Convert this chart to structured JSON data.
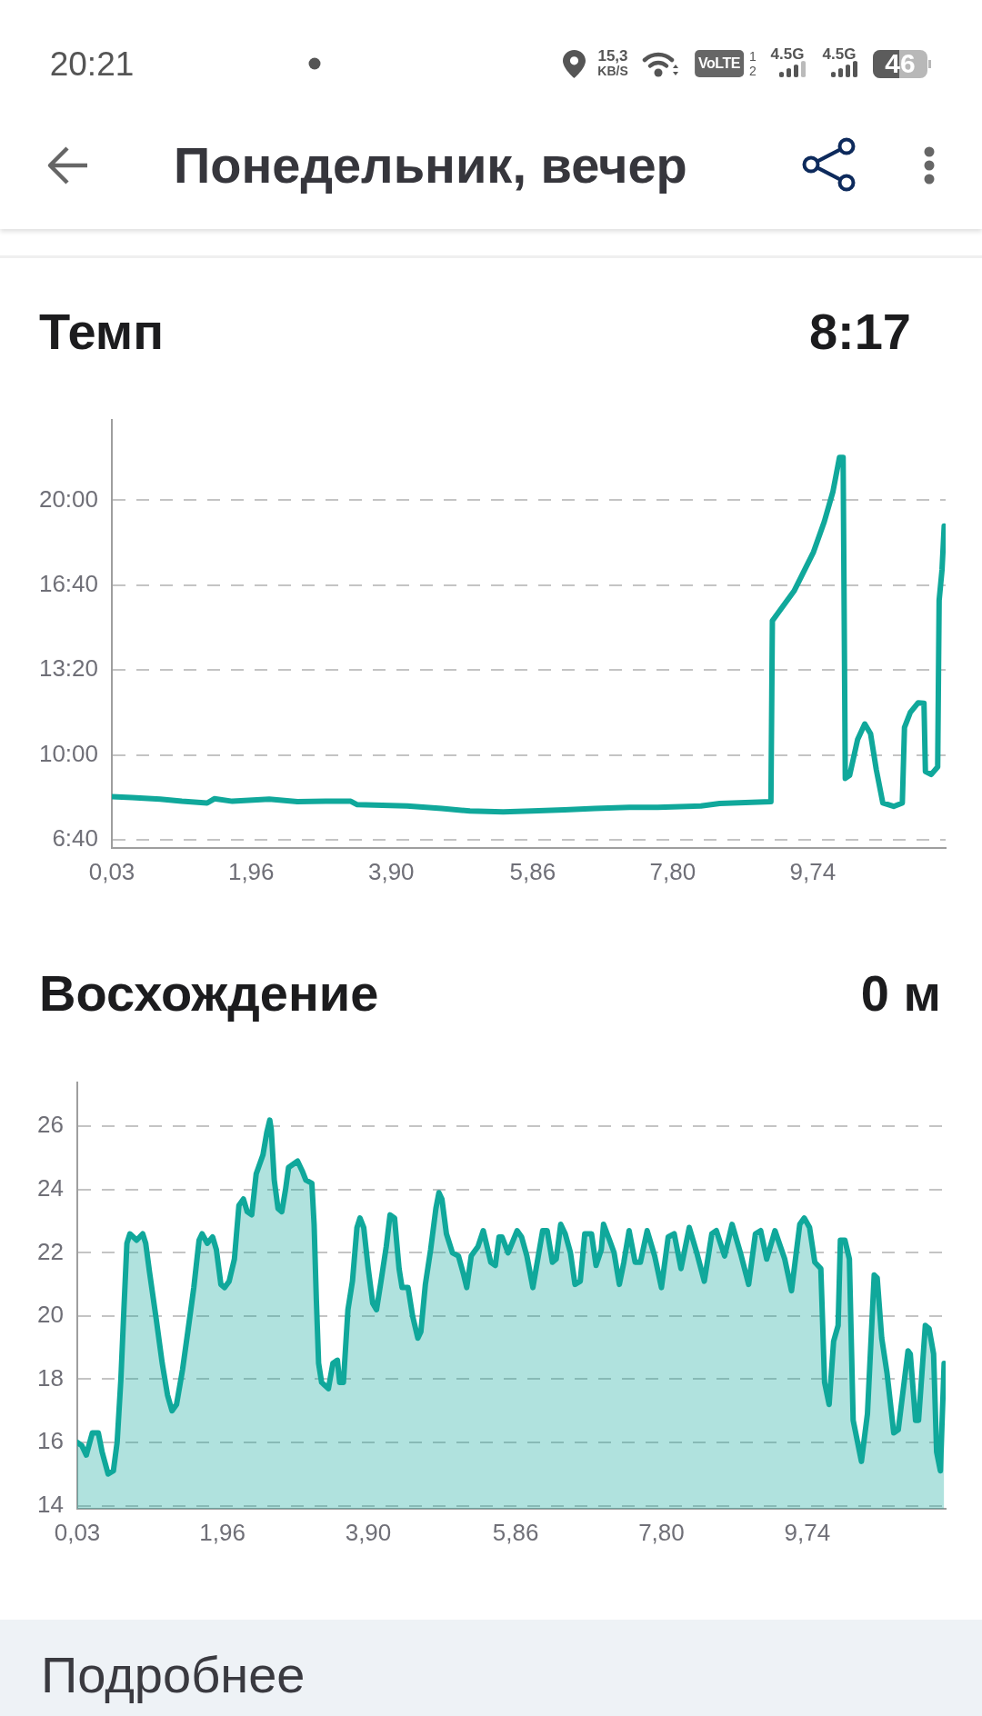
{
  "chart_data": [
    {
      "type": "other",
      "title": "Понедельник, вечер",
      "annotations": [
        "20:21",
        "15,3",
        "KB/S",
        "VoLTE",
        "1",
        "2",
        "4.5G",
        "4.5G",
        "46"
      ]
    },
    {
      "type": "line",
      "title": "Темп",
      "annotations": [
        "8:17"
      ],
      "x": [
        0.03,
        0.31,
        0.7,
        1.0,
        1.35,
        1.45,
        1.7,
        2.21,
        2.6,
        2.99,
        3.34,
        3.43,
        4.12,
        4.6,
        4.99,
        5.45,
        5.85,
        6.3,
        6.72,
        7.2,
        7.59,
        8.19,
        8.45,
        9.16,
        9.18,
        9.48,
        9.75,
        9.9,
        10.02,
        10.11,
        10.16,
        10.19,
        10.25,
        10.36,
        10.46,
        10.54,
        10.62,
        10.71,
        10.86,
        10.98,
        11.01,
        11.09,
        11.2,
        11.28,
        11.3,
        11.38,
        11.47,
        11.49,
        11.53,
        11.56
      ],
      "values": [
        502,
        500,
        496,
        491,
        487,
        497,
        491,
        496,
        490,
        491,
        491,
        483,
        480,
        474,
        468,
        466,
        468,
        471,
        474,
        477,
        477,
        480,
        486,
        490,
        916,
        986,
        1078,
        1150,
        1221,
        1301,
        1301,
        545,
        552,
        636,
        673,
        650,
        565,
        487,
        479,
        487,
        665,
        700,
        723,
        722,
        561,
        554,
        572,
        964,
        1036,
        1139
      ],
      "color": "#10a89b",
      "xlim": [
        0.03,
        11.58
      ],
      "xticks": [
        {
          "value": 0.03,
          "label": "0,03"
        },
        {
          "value": 1.96,
          "label": "1,96"
        },
        {
          "value": 3.9,
          "label": "3,90"
        },
        {
          "value": 5.86,
          "label": "5,86"
        },
        {
          "value": 7.8,
          "label": "7,80"
        },
        {
          "value": 9.74,
          "label": "9,74"
        }
      ],
      "ylim": [
        381,
        1390
      ],
      "yticks": [
        {
          "value": 400,
          "label": "6:40"
        },
        {
          "value": 600,
          "label": "10:00"
        },
        {
          "value": 800,
          "label": "13:20"
        },
        {
          "value": 1000,
          "label": "16:40"
        },
        {
          "value": 1200,
          "label": "20:00"
        }
      ],
      "grid": "y"
    },
    {
      "type": "area",
      "title": "Восхождение",
      "annotations": [
        "0 м"
      ],
      "x": [
        0.03,
        0.09,
        0.15,
        0.23,
        0.31,
        0.36,
        0.44,
        0.51,
        0.56,
        0.61,
        0.65,
        0.69,
        0.73,
        0.82,
        0.9,
        0.94,
        0.99,
        1.08,
        1.16,
        1.23,
        1.29,
        1.35,
        1.43,
        1.5,
        1.58,
        1.65,
        1.69,
        1.76,
        1.83,
        1.88,
        1.94,
        1.99,
        2.05,
        2.12,
        2.18,
        2.24,
        2.29,
        2.35,
        2.41,
        2.5,
        2.55,
        2.59,
        2.61,
        2.65,
        2.7,
        2.75,
        2.8,
        2.84,
        2.9,
        2.96,
        3.02,
        3.07,
        3.15,
        3.18,
        3.21,
        3.24,
        3.28,
        3.37,
        3.43,
        3.49,
        3.52,
        3.57,
        3.63,
        3.69,
        3.75,
        3.79,
        3.84,
        3.9,
        3.96,
        4.01,
        4.07,
        4.14,
        4.19,
        4.25,
        4.31,
        4.35,
        4.43,
        4.49,
        4.56,
        4.6,
        4.66,
        4.73,
        4.8,
        4.84,
        4.88,
        4.94,
        5.02,
        5.1,
        5.17,
        5.21,
        5.27,
        5.36,
        5.43,
        5.53,
        5.59,
        5.64,
        5.68,
        5.76,
        5.88,
        5.94,
        6.01,
        6.09,
        6.22,
        6.28,
        6.35,
        6.4,
        6.46,
        6.52,
        6.59,
        6.65,
        6.72,
        6.78,
        6.87,
        6.93,
        7.0,
        7.03,
        7.11,
        7.17,
        7.24,
        7.3,
        7.37,
        7.45,
        7.52,
        7.61,
        7.71,
        7.8,
        7.89,
        7.97,
        8.06,
        8.17,
        8.27,
        8.37,
        8.47,
        8.53,
        8.64,
        8.74,
        8.85,
        8.96,
        9.05,
        9.12,
        9.2,
        9.31,
        9.44,
        9.53,
        9.64,
        9.7,
        9.77,
        9.84,
        9.92,
        9.97,
        10.03,
        10.09,
        10.15,
        10.18,
        10.24,
        10.3,
        10.35,
        10.46,
        10.54,
        10.63,
        10.67,
        10.73,
        10.8,
        10.89,
        10.95,
        11.08,
        11.11,
        11.18,
        11.22,
        11.31,
        11.36,
        11.42,
        11.46,
        11.51,
        11.56
      ],
      "values": [
        16.0,
        15.9,
        15.6,
        16.3,
        16.3,
        15.7,
        15.0,
        15.1,
        16.0,
        18.0,
        20.2,
        22.3,
        22.6,
        22.4,
        22.6,
        22.3,
        21.4,
        19.9,
        18.5,
        17.5,
        17.0,
        17.2,
        18.3,
        19.5,
        20.9,
        22.4,
        22.6,
        22.3,
        22.5,
        22.1,
        21.0,
        20.9,
        21.1,
        21.8,
        23.5,
        23.7,
        23.3,
        23.2,
        24.5,
        25.1,
        25.8,
        26.2,
        25.9,
        24.3,
        23.4,
        23.3,
        24.0,
        24.7,
        24.8,
        24.9,
        24.6,
        24.3,
        24.2,
        22.9,
        20.5,
        18.5,
        17.9,
        17.7,
        18.5,
        18.6,
        17.9,
        17.9,
        20.2,
        21.1,
        22.8,
        23.1,
        22.8,
        21.5,
        20.4,
        20.2,
        21.1,
        22.2,
        23.2,
        23.1,
        21.5,
        20.9,
        20.9,
        20.0,
        19.3,
        19.5,
        21.0,
        22.1,
        23.4,
        23.9,
        23.7,
        22.6,
        22.0,
        21.9,
        21.3,
        20.9,
        21.9,
        22.2,
        22.7,
        21.7,
        21.6,
        22.5,
        22.5,
        22.0,
        22.7,
        22.5,
        21.9,
        20.9,
        22.7,
        22.7,
        21.7,
        21.8,
        22.9,
        22.6,
        22.0,
        21.0,
        21.1,
        22.6,
        22.6,
        21.6,
        22.1,
        22.9,
        22.4,
        22.0,
        21.0,
        21.7,
        22.7,
        21.7,
        21.7,
        22.7,
        21.9,
        20.9,
        22.5,
        22.6,
        21.5,
        22.8,
        22.0,
        21.1,
        22.6,
        22.7,
        21.9,
        22.9,
        22.0,
        21.0,
        22.6,
        22.7,
        21.8,
        22.7,
        21.8,
        20.8,
        22.9,
        23.1,
        22.8,
        21.7,
        21.5,
        17.9,
        17.2,
        19.2,
        19.7,
        22.4,
        22.4,
        21.8,
        16.7,
        15.4,
        16.9,
        21.3,
        21.2,
        19.3,
        18.2,
        16.3,
        16.4,
        18.9,
        18.8,
        16.7,
        16.7,
        19.7,
        19.6,
        18.8,
        15.7,
        15.1,
        18.5
      ],
      "color": "#10a89b",
      "xlim": [
        0.03,
        11.58
      ],
      "xticks": [
        {
          "value": 0.03,
          "label": "0,03"
        },
        {
          "value": 1.96,
          "label": "1,96"
        },
        {
          "value": 3.9,
          "label": "3,90"
        },
        {
          "value": 5.86,
          "label": "5,86"
        },
        {
          "value": 7.8,
          "label": "7,80"
        },
        {
          "value": 9.74,
          "label": "9,74"
        }
      ],
      "ylim": [
        13.9,
        27.4
      ],
      "yticks": [
        14,
        16,
        18,
        20,
        22,
        24,
        26
      ],
      "grid": "y"
    },
    {
      "type": "other",
      "title": "Подробнее"
    }
  ]
}
